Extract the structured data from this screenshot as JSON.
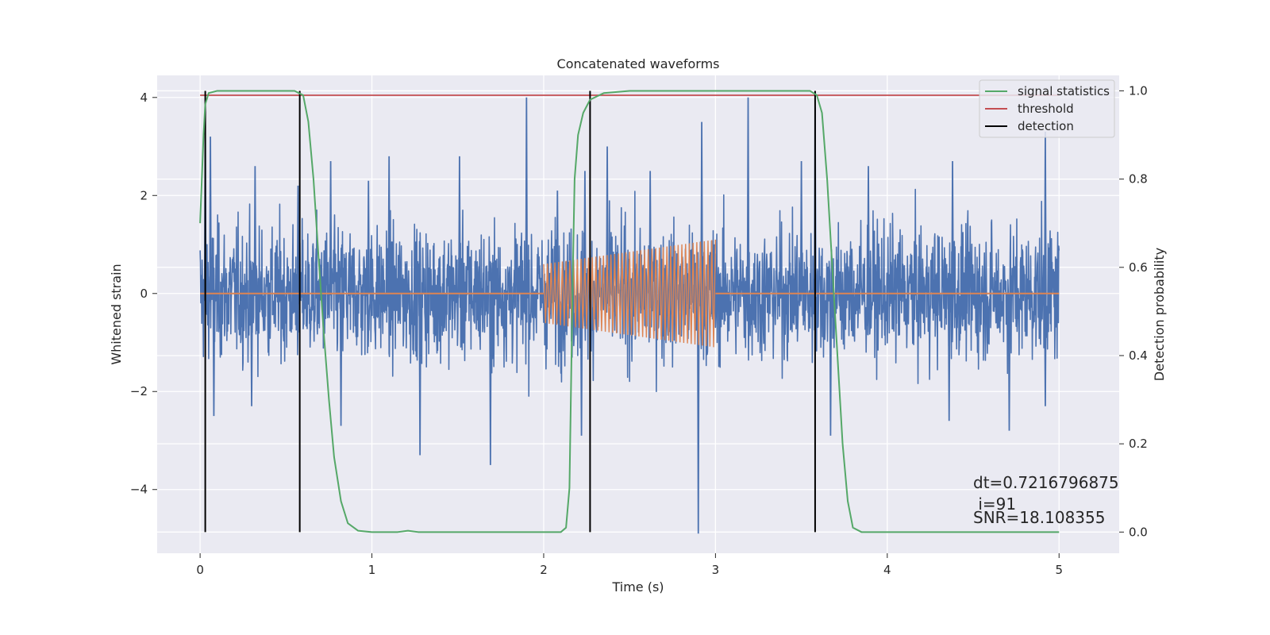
{
  "chart_data": {
    "type": "line",
    "title": "Concatenated waveforms",
    "xlabel": "Time (s)",
    "ylabel": "Whitened strain",
    "y2label": "Detection probability",
    "xlim": [
      -0.25,
      5.35
    ],
    "ylim": [
      -5.3,
      4.45
    ],
    "y2lim": [
      -0.048,
      1.035
    ],
    "x_ticks": [
      0,
      1,
      2,
      3,
      4,
      5
    ],
    "x_tick_labels": [
      "0",
      "1",
      "2",
      "3",
      "4",
      "5"
    ],
    "y_ticks": [
      -4,
      -2,
      0,
      2,
      4
    ],
    "y_tick_labels": [
      "−4",
      "−2",
      "0",
      "2",
      "4"
    ],
    "y2_ticks": [
      0.0,
      0.2,
      0.4,
      0.6,
      0.8,
      1.0
    ],
    "y2_tick_labels": [
      "0.0",
      "0.2",
      "0.4",
      "0.6",
      "0.8",
      "1.0"
    ],
    "grid": true,
    "legend_position": "top-right",
    "series": [
      {
        "kind": "noise",
        "color": "#4c72b0",
        "x_range": [
          0,
          5
        ],
        "typical_amplitude": 1.1,
        "peak_values": [
          [
            0.03,
            3.2
          ],
          [
            0.06,
            3.2
          ],
          [
            0.32,
            2.6
          ],
          [
            0.57,
            2.2
          ],
          [
            0.76,
            2.7
          ],
          [
            0.98,
            2.3
          ],
          [
            1.1,
            2.8
          ],
          [
            1.51,
            2.8
          ],
          [
            1.9,
            4.0
          ],
          [
            2.08,
            2.1
          ],
          [
            2.24,
            2.5
          ],
          [
            2.37,
            3.0
          ],
          [
            2.62,
            2.5
          ],
          [
            2.92,
            3.5
          ],
          [
            3.19,
            4.0
          ],
          [
            3.5,
            2.7
          ],
          [
            3.58,
            3.8
          ],
          [
            3.89,
            2.6
          ],
          [
            4.38,
            2.7
          ],
          [
            4.92,
            3.3
          ],
          [
            0.08,
            -2.5
          ],
          [
            0.3,
            -2.3
          ],
          [
            0.82,
            -2.7
          ],
          [
            1.28,
            -3.3
          ],
          [
            1.69,
            -3.5
          ],
          [
            2.22,
            -2.9
          ],
          [
            2.9,
            -4.9
          ],
          [
            3.67,
            -2.9
          ],
          [
            4.36,
            -2.6
          ],
          [
            4.71,
            -2.8
          ],
          [
            4.92,
            -2.3
          ]
        ]
      },
      {
        "kind": "chirp",
        "color": "#dd8452",
        "x_range": [
          0,
          5
        ],
        "signal_start": 2.0,
        "signal_end": 3.0,
        "amplitude_start": 0.6,
        "amplitude_end": 1.1
      },
      {
        "kind": "probability",
        "name": "signal statistics",
        "color": "#55a868",
        "axis": "right",
        "points": [
          [
            0,
            0.7
          ],
          [
            0.01,
            0.8
          ],
          [
            0.02,
            0.9
          ],
          [
            0.03,
            0.97
          ],
          [
            0.05,
            0.995
          ],
          [
            0.1,
            1.0
          ],
          [
            0.55,
            1.0
          ],
          [
            0.6,
            0.99
          ],
          [
            0.63,
            0.93
          ],
          [
            0.66,
            0.8
          ],
          [
            0.69,
            0.62
          ],
          [
            0.72,
            0.45
          ],
          [
            0.75,
            0.3
          ],
          [
            0.78,
            0.17
          ],
          [
            0.82,
            0.07
          ],
          [
            0.86,
            0.02
          ],
          [
            0.92,
            0.003
          ],
          [
            1.0,
            0.0
          ],
          [
            1.15,
            0.0
          ],
          [
            1.21,
            0.003
          ],
          [
            1.27,
            0.0
          ],
          [
            2.1,
            0.0
          ],
          [
            2.13,
            0.01
          ],
          [
            2.15,
            0.1
          ],
          [
            2.16,
            0.35
          ],
          [
            2.17,
            0.6
          ],
          [
            2.18,
            0.8
          ],
          [
            2.2,
            0.9
          ],
          [
            2.23,
            0.95
          ],
          [
            2.27,
            0.98
          ],
          [
            2.35,
            0.995
          ],
          [
            2.5,
            1.0
          ],
          [
            3.55,
            1.0
          ],
          [
            3.59,
            0.99
          ],
          [
            3.62,
            0.95
          ],
          [
            3.65,
            0.8
          ],
          [
            3.68,
            0.6
          ],
          [
            3.71,
            0.4
          ],
          [
            3.74,
            0.2
          ],
          [
            3.77,
            0.07
          ],
          [
            3.8,
            0.01
          ],
          [
            3.85,
            0.0
          ],
          [
            5.0,
            0.0
          ]
        ]
      },
      {
        "kind": "threshold",
        "name": "threshold",
        "color": "#c44e52",
        "axis": "right",
        "x": [
          0,
          5
        ],
        "value": 0.99
      },
      {
        "kind": "detection",
        "name": "detection",
        "color": "#000000",
        "axis": "right",
        "x": [
          0.03,
          0.58,
          2.27,
          3.58
        ],
        "ymin": 0.0,
        "ymax": 1.0
      }
    ],
    "legend": [
      {
        "label": "signal statistics",
        "color": "#55a868"
      },
      {
        "label": "threshold",
        "color": "#c44e52"
      },
      {
        "label": "detection",
        "color": "#000000"
      }
    ],
    "annotations": {
      "dt": "dt=0.7216796875",
      "i": " i=91",
      "snr": "SNR=18.108355"
    }
  }
}
